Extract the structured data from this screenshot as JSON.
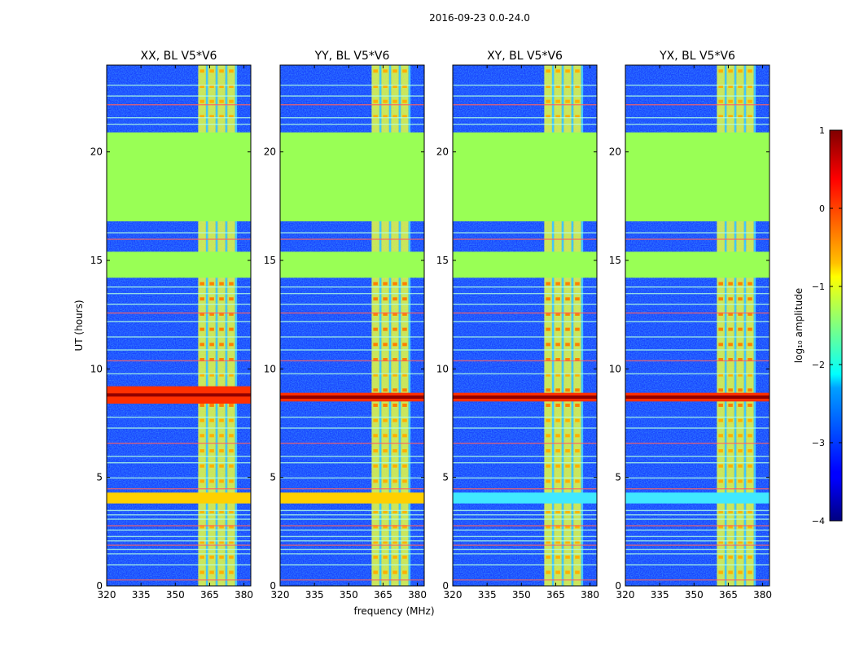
{
  "figure": {
    "suptitle": "2016-09-23 0.0-24.0",
    "xlabel": "frequency (MHz)",
    "ylabel": "UT (hours)",
    "colorbar": {
      "label": "log₁₀ amplitude",
      "range": [
        -4,
        1
      ],
      "ticks": [
        1,
        0,
        -1,
        -2,
        -3,
        -4
      ],
      "tick_labels": [
        "1",
        "0",
        "−1",
        "−2",
        "−3",
        "−4"
      ],
      "colormap": "jet"
    }
  },
  "chart_data": [
    {
      "type": "heatmap",
      "title": "XX, BL V5*V6",
      "xlim": [
        320,
        383
      ],
      "ylim": [
        0,
        24
      ],
      "xticks": [
        320,
        335,
        350,
        365,
        380
      ],
      "xtick_labels": [
        "320",
        "335",
        "350",
        "365",
        "380"
      ],
      "yticks": [
        0,
        5,
        10,
        15,
        20
      ],
      "ytick_labels": [
        "0",
        "5",
        "10",
        "15",
        "20"
      ],
      "rfi_band_mhz": [
        360,
        377
      ],
      "flagged_hours": [
        [
          16.8,
          20.9
        ],
        [
          14.2,
          15.4
        ]
      ],
      "bright_hours": [
        [
          8.4,
          9.2
        ]
      ],
      "broadband_hours": [
        [
          3.8,
          4.3
        ]
      ]
    },
    {
      "type": "heatmap",
      "title": "YY, BL V5*V6",
      "xlim": [
        320,
        383
      ],
      "ylim": [
        0,
        24
      ],
      "xticks": [
        320,
        335,
        350,
        365,
        380
      ],
      "xtick_labels": [
        "320",
        "335",
        "350",
        "365",
        "380"
      ],
      "yticks": [
        0,
        5,
        10,
        15,
        20
      ],
      "ytick_labels": [
        "0",
        "5",
        "10",
        "15",
        "20"
      ],
      "rfi_band_mhz": [
        360,
        377
      ],
      "flagged_hours": [
        [
          16.8,
          20.9
        ],
        [
          14.2,
          15.4
        ]
      ],
      "bright_hours": [
        [
          8.5,
          8.9
        ]
      ],
      "broadband_hours": [
        [
          3.8,
          4.3
        ]
      ]
    },
    {
      "type": "heatmap",
      "title": "XY, BL V5*V6",
      "xlim": [
        320,
        383
      ],
      "ylim": [
        0,
        24
      ],
      "xticks": [
        320,
        335,
        350,
        365,
        380
      ],
      "xtick_labels": [
        "320",
        "335",
        "350",
        "365",
        "380"
      ],
      "yticks": [
        0,
        5,
        10,
        15,
        20
      ],
      "ytick_labels": [
        "0",
        "5",
        "10",
        "15",
        "20"
      ],
      "rfi_band_mhz": [
        360,
        377
      ],
      "flagged_hours": [
        [
          16.8,
          20.9
        ],
        [
          14.2,
          15.4
        ]
      ],
      "bright_hours": [
        [
          8.5,
          8.9
        ]
      ],
      "broadband_hours": [
        [
          3.8,
          4.3
        ]
      ]
    },
    {
      "type": "heatmap",
      "title": "YX, BL V5*V6",
      "xlim": [
        320,
        383
      ],
      "ylim": [
        0,
        24
      ],
      "xticks": [
        320,
        335,
        350,
        365,
        380
      ],
      "xtick_labels": [
        "320",
        "335",
        "350",
        "365",
        "380"
      ],
      "yticks": [
        0,
        5,
        10,
        15,
        20
      ],
      "ytick_labels": [
        "0",
        "5",
        "10",
        "15",
        "20"
      ],
      "rfi_band_mhz": [
        360,
        377
      ],
      "flagged_hours": [
        [
          16.8,
          20.9
        ],
        [
          14.2,
          15.4
        ]
      ],
      "bright_hours": [
        [
          8.5,
          8.9
        ]
      ],
      "broadband_hours": [
        [
          3.8,
          4.3
        ]
      ]
    }
  ]
}
